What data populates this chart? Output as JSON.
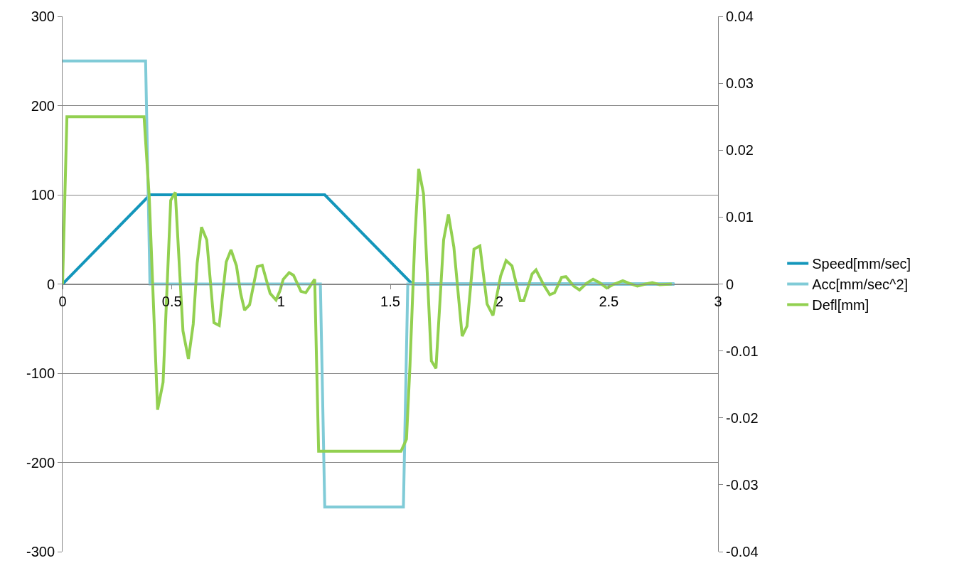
{
  "chart_data": {
    "type": "line",
    "series": [
      {
        "name": "Speed[mm/sec]",
        "color": "#1396bb",
        "x": [
          0,
          0.4,
          1.2,
          1.6,
          2.8
        ],
        "values": [
          0,
          100,
          100,
          0,
          0
        ]
      },
      {
        "name": "Acc[mm/sec^2]",
        "color": "#80cbd7",
        "x": [
          0,
          0.38,
          0.4,
          1.18,
          1.2,
          1.56,
          1.58,
          2.8
        ],
        "values": [
          250,
          250,
          0,
          0,
          -250,
          -250,
          0,
          0
        ]
      },
      {
        "name": "Defl[mm]",
        "color": "#92d050",
        "axis": "y2",
        "x": [
          0,
          0.02,
          0.373,
          0.397,
          0.435,
          0.46,
          0.495,
          0.516,
          0.551,
          0.576,
          0.598,
          0.616,
          0.636,
          0.66,
          0.693,
          0.717,
          0.749,
          0.771,
          0.796,
          0.815,
          0.833,
          0.856,
          0.891,
          0.914,
          0.95,
          0.977,
          0.994,
          1.01,
          1.037,
          1.057,
          1.091,
          1.113,
          1.154,
          1.172,
          1.549,
          1.574,
          1.59,
          1.612,
          1.63,
          1.652,
          1.688,
          1.709,
          1.744,
          1.766,
          1.791,
          1.829,
          1.851,
          1.883,
          1.91,
          1.943,
          1.97,
          2.005,
          2.03,
          2.057,
          2.095,
          2.111,
          2.149,
          2.167,
          2.203,
          2.23,
          2.252,
          2.284,
          2.304,
          2.339,
          2.366,
          2.398,
          2.428,
          2.458,
          2.491,
          2.518,
          2.564,
          2.594,
          2.631,
          2.669,
          2.699,
          2.733,
          2.788
        ],
        "values": [
          0,
          0.025,
          0.025,
          0.0128,
          -0.0188,
          -0.0147,
          0.0125,
          0.0137,
          -0.007,
          -0.0112,
          -0.006,
          0.0031,
          0.0085,
          0.0066,
          -0.0058,
          -0.0062,
          0.0033,
          0.0051,
          0.0027,
          -0.0014,
          -0.0039,
          -0.0031,
          0.0026,
          0.0028,
          -0.0014,
          -0.0024,
          -0.0011,
          0.0007,
          0.0017,
          0.0013,
          -0.0011,
          -0.0013,
          0.0007,
          -0.025,
          -0.025,
          -0.0232,
          -0.0122,
          0.0066,
          0.0172,
          0.0135,
          -0.0115,
          -0.0126,
          0.0066,
          0.0104,
          0.0055,
          -0.0078,
          -0.0063,
          0.0052,
          0.0057,
          -0.003,
          -0.0047,
          0.0012,
          0.0035,
          0.0027,
          -0.0025,
          -0.0025,
          0.0015,
          0.0021,
          -0.0002,
          -0.0016,
          -0.0013,
          0.001,
          0.0011,
          -0.0003,
          -0.0009,
          0.0001,
          0.0007,
          0.0002,
          -0.0006,
          -0.0001,
          0.0005,
          0.0001,
          -0.0003,
          0,
          0.0002,
          -0.0001,
          0
        ]
      }
    ],
    "xlim": [
      0,
      3
    ],
    "xticks": [
      0,
      0.5,
      1,
      1.5,
      2,
      2.5,
      3
    ],
    "ylim": [
      -300,
      300
    ],
    "yticks": [
      -300,
      -200,
      -100,
      0,
      100,
      200,
      300
    ],
    "y2lim": [
      -0.04,
      0.04
    ],
    "y2ticks": [
      -0.04,
      -0.03,
      -0.02,
      -0.01,
      0,
      0.01,
      0.02,
      0.03,
      0.04
    ],
    "grid": "y",
    "legend": "right",
    "marker": "none",
    "line_style": "solid"
  }
}
